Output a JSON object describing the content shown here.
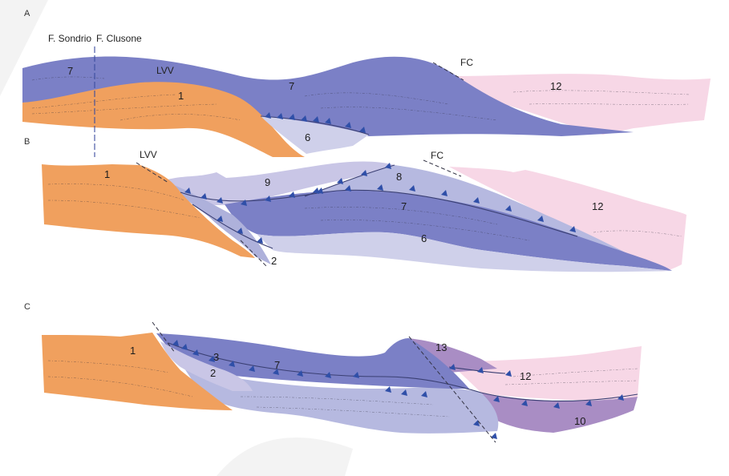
{
  "panels": [
    {
      "letter": "A",
      "labels": {
        "sondrio": "F. Sondrio",
        "clusone": "F. Clusone",
        "lvv": "LVV",
        "fc": "FC",
        "unit_1": "1",
        "unit_6": "6",
        "unit_7_left": "7",
        "unit_7_mid": "7",
        "unit_12": "12"
      }
    },
    {
      "letter": "B",
      "labels": {
        "lvv": "LVV",
        "fc": "FC",
        "unit_1": "1",
        "unit_2": "2",
        "unit_6": "6",
        "unit_7": "7",
        "unit_8": "8",
        "unit_9": "9",
        "unit_12": "12"
      }
    },
    {
      "letter": "C",
      "labels": {
        "unit_1": "1",
        "unit_2": "2",
        "unit_3": "3",
        "unit_7": "7",
        "unit_10": "10",
        "unit_12": "12",
        "unit_13": "13"
      }
    }
  ],
  "colors": {
    "orange_unit": "#f0a05e",
    "blue_unit": "#7b80c6",
    "pale_blue_unit": "#b6b9e0",
    "lavender_unit": "#c9c6e6",
    "pink_unit": "#f7d7e6",
    "mauve_unit": "#a98dc4",
    "purple_unit": "#9f8ccd",
    "thrust_teeth": "#2f4fa8"
  }
}
